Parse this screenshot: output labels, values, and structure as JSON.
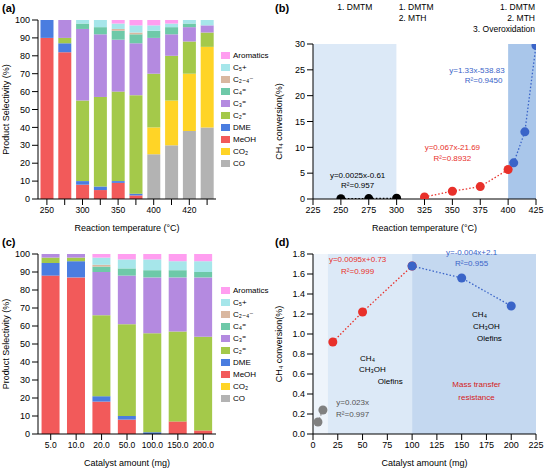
{
  "chart_data": [
    {
      "type": "bar",
      "panel": "(a)",
      "stacked": true,
      "legend": "right",
      "x_label": "Reaction temperature (°C)",
      "y_label": "Product Selectivity (%)",
      "categories": [
        "250",
        null,
        "300",
        null,
        "350",
        null,
        "400",
        null,
        "420",
        null
      ],
      "ylim": [
        0,
        100
      ],
      "yticks": [
        0,
        10,
        20,
        30,
        40,
        50,
        60,
        70,
        80,
        90,
        100
      ],
      "series": [
        {
          "name": "CO",
          "color": "#b3b3b3",
          "values": [
            0,
            0,
            0,
            0,
            0,
            0,
            25,
            30,
            38,
            40
          ]
        },
        {
          "name": "CO₂",
          "color": "#ffd426",
          "values": [
            0,
            0,
            0,
            0,
            0,
            0,
            15,
            25,
            32,
            45
          ]
        },
        {
          "name": "MeOH",
          "color": "#f25a5a",
          "values": [
            90,
            82,
            8,
            5,
            9,
            2,
            0,
            0,
            0,
            0
          ]
        },
        {
          "name": "DME",
          "color": "#4a7de0",
          "values": [
            10,
            5,
            2,
            2,
            1,
            1,
            0,
            0,
            0,
            0
          ]
        },
        {
          "name": "C₂⁼",
          "color": "#a4c94a",
          "values": [
            0,
            3,
            45,
            50,
            50,
            55,
            30,
            25,
            18,
            8
          ]
        },
        {
          "name": "C₃⁼",
          "color": "#b48ae0",
          "values": [
            0,
            10,
            40,
            35,
            29,
            29,
            20,
            12,
            8,
            4
          ]
        },
        {
          "name": "C₄⁼",
          "color": "#6ec9a8",
          "values": [
            0,
            0,
            3,
            4,
            5,
            5,
            4,
            4,
            2,
            0
          ]
        },
        {
          "name": "C₂₋₄⁻",
          "color": "#d9b8a0",
          "values": [
            0,
            0,
            0,
            0,
            1,
            1,
            0,
            0,
            0,
            0
          ]
        },
        {
          "name": "C₅+",
          "color": "#a6e6ea",
          "values": [
            0,
            0,
            2,
            4,
            3,
            4,
            3,
            2,
            2,
            3
          ]
        },
        {
          "name": "Aromatics",
          "color": "#ff9ef0",
          "values": [
            0,
            0,
            0,
            0,
            2,
            3,
            3,
            2,
            0,
            0
          ]
        }
      ]
    },
    {
      "type": "scatter",
      "panel": "(b)",
      "marker": "circle",
      "line_style": "dotted",
      "x_label": "Reaction temperature (°C)",
      "y_label": "CH₄ conversion(%)",
      "xlim": [
        225,
        425
      ],
      "xticks": [
        225,
        250,
        275,
        300,
        325,
        350,
        375,
        400,
        425
      ],
      "ylim": [
        0,
        30
      ],
      "yticks": [
        0,
        5,
        10,
        15,
        20,
        25,
        30
      ],
      "regions": [
        {
          "x": [
            225,
            300
          ],
          "color": "#dce9f7",
          "label": [
            "1. DMTM"
          ]
        },
        {
          "x": [
            300,
            400
          ],
          "color": "#ffffff",
          "label": [
            "1. DMTM",
            "2. MTH"
          ]
        },
        {
          "x": [
            400,
            425
          ],
          "color": "#a9c6ea",
          "label": [
            "1. DMTM",
            "2. MTH",
            "3. Overoxidation"
          ]
        }
      ],
      "series": [
        {
          "color": "#000000",
          "x": [
            250,
            275,
            300
          ],
          "values": [
            0.05,
            0.08,
            0.15
          ]
        },
        {
          "color": "#e8302a",
          "x": [
            325,
            350,
            375,
            400
          ],
          "values": [
            0.4,
            1.5,
            2.4,
            5.7
          ]
        },
        {
          "color": "#3a64c8",
          "x": [
            405,
            415,
            425
          ],
          "values": [
            7,
            13,
            29.7
          ]
        }
      ],
      "annotations": [
        {
          "text": "y=0.0025x-0.61",
          "x": 265,
          "y": 4.6,
          "color": "#000000"
        },
        {
          "text": "R²=0.957",
          "x": 265,
          "y": 2.6,
          "color": "#000000"
        },
        {
          "text": "y=0.067x-21.69",
          "x": 350,
          "y": 10,
          "color": "#e8302a"
        },
        {
          "text": "R²=0.8932",
          "x": 350,
          "y": 8,
          "color": "#e8302a"
        },
        {
          "text": "y=1.33x-538.83",
          "x": 372,
          "y": 25,
          "color": "#3a64c8"
        },
        {
          "text": "R²=0.9450",
          "x": 378,
          "y": 23,
          "color": "#3a64c8"
        }
      ]
    },
    {
      "type": "bar",
      "panel": "(c)",
      "stacked": true,
      "legend": "right",
      "x_label": "Catalyst amount (mg)",
      "y_label": "Product Selectivity (%)",
      "categories": [
        "5.0",
        "10.0",
        "20.0",
        "50.0",
        "100.0",
        "150.0",
        "200.0"
      ],
      "ylim": [
        0,
        100
      ],
      "yticks": [
        0,
        10,
        20,
        30,
        40,
        50,
        60,
        70,
        80,
        90,
        100
      ],
      "series": [
        {
          "name": "CO",
          "color": "#b3b3b3",
          "values": [
            0,
            0,
            0,
            0,
            0,
            0,
            0
          ]
        },
        {
          "name": "CO₂",
          "color": "#ffd426",
          "values": [
            0,
            0,
            0,
            0,
            0,
            0,
            0
          ]
        },
        {
          "name": "MeOH",
          "color": "#f25a5a",
          "values": [
            88,
            87,
            18,
            8,
            0,
            7,
            2
          ]
        },
        {
          "name": "DME",
          "color": "#4a7de0",
          "values": [
            7,
            9,
            3,
            2,
            1,
            0,
            0
          ]
        },
        {
          "name": "C₂⁼",
          "color": "#a4c94a",
          "values": [
            3,
            2,
            45,
            51,
            55,
            50,
            52
          ]
        },
        {
          "name": "C₃⁼",
          "color": "#b48ae0",
          "values": [
            2,
            2,
            24,
            27,
            31,
            30,
            33
          ]
        },
        {
          "name": "C₄⁼",
          "color": "#6ec9a8",
          "values": [
            0,
            0,
            3,
            4,
            4,
            4,
            3
          ]
        },
        {
          "name": "C₂₋₄⁻",
          "color": "#d9b8a0",
          "values": [
            0,
            0,
            1,
            0,
            0,
            0,
            0
          ]
        },
        {
          "name": "C₅+",
          "color": "#a6e6ea",
          "values": [
            0,
            0,
            4,
            5,
            6,
            5,
            6
          ]
        },
        {
          "name": "Aromatics",
          "color": "#ff9ef0",
          "values": [
            0,
            0,
            2,
            3,
            3,
            4,
            4
          ]
        }
      ]
    },
    {
      "type": "scatter",
      "panel": "(d)",
      "marker": "circle",
      "line_style": "dotted",
      "x_label": "Catalyst amount (mg)",
      "y_label": "CH₄ conversion(%)",
      "xlim": [
        0,
        225
      ],
      "xticks": [
        0,
        25,
        50,
        75,
        100,
        125,
        150,
        175,
        200,
        225
      ],
      "ylim": [
        0,
        1.8
      ],
      "yticks": [
        {
          "value": 0,
          "label": "0.0"
        },
        {
          "value": 0.2,
          "label": "0.2"
        },
        {
          "value": 0.4,
          "label": "0.4"
        },
        {
          "value": 0.6,
          "label": "0.6"
        },
        {
          "value": 0.8,
          "label": "0.8"
        },
        {
          "value": 1,
          "label": "1.0"
        },
        {
          "value": 1.2,
          "label": "1.2"
        },
        {
          "value": 1.4,
          "label": "1.4"
        },
        {
          "value": 1.6,
          "label": "1.6"
        },
        {
          "value": 1.8,
          "label": "1.8"
        }
      ],
      "regions": [
        {
          "x": [
            0,
            15
          ],
          "color": "#eef4fb"
        },
        {
          "x": [
            15,
            100
          ],
          "color": "#dce9f7"
        },
        {
          "x": [
            100,
            225
          ],
          "color": "#c4d8f0"
        }
      ],
      "series": [
        {
          "color": "#808080",
          "x": [
            5,
            10
          ],
          "values": [
            0.12,
            0.24
          ]
        },
        {
          "color": "#e8302a",
          "x": [
            20,
            50,
            100
          ],
          "values": [
            0.92,
            1.22,
            1.68
          ]
        },
        {
          "color": "#3a64c8",
          "x": [
            100,
            150,
            200
          ],
          "values": [
            1.68,
            1.56,
            1.28
          ]
        }
      ],
      "annotations": [
        {
          "text": "y=0.023x",
          "x": 40,
          "y": 0.32,
          "color": "#555555"
        },
        {
          "text": "R²=0.997",
          "x": 40,
          "y": 0.2,
          "color": "#555555"
        },
        {
          "text": "y=0.0095x+0.73",
          "x": 45,
          "y": 1.75,
          "color": "#e8302a"
        },
        {
          "text": "R²=0.999",
          "x": 45,
          "y": 1.63,
          "color": "#e8302a"
        },
        {
          "text": "y=-0.004x+2.1",
          "x": 160,
          "y": 1.82,
          "color": "#3a64c8"
        },
        {
          "text": "R²=0.955",
          "x": 160,
          "y": 1.71,
          "color": "#3a64c8"
        },
        {
          "text": "CH₄",
          "x": 55,
          "y": 0.76,
          "color": "#000000"
        },
        {
          "text": "CH₃OH",
          "x": 60,
          "y": 0.65,
          "color": "#000000"
        },
        {
          "text": "Olefins",
          "x": 78,
          "y": 0.53,
          "color": "#000000"
        },
        {
          "text": "CH₄",
          "x": 168,
          "y": 1.2,
          "color": "#000000"
        },
        {
          "text": "CH₃OH",
          "x": 175,
          "y": 1.08,
          "color": "#000000"
        },
        {
          "text": "Olefins",
          "x": 178,
          "y": 0.96,
          "color": "#000000"
        },
        {
          "text": "Mass transfer",
          "x": 165,
          "y": 0.5,
          "color": "#d42020"
        },
        {
          "text": "resistance",
          "x": 165,
          "y": 0.37,
          "color": "#d42020"
        }
      ]
    }
  ]
}
